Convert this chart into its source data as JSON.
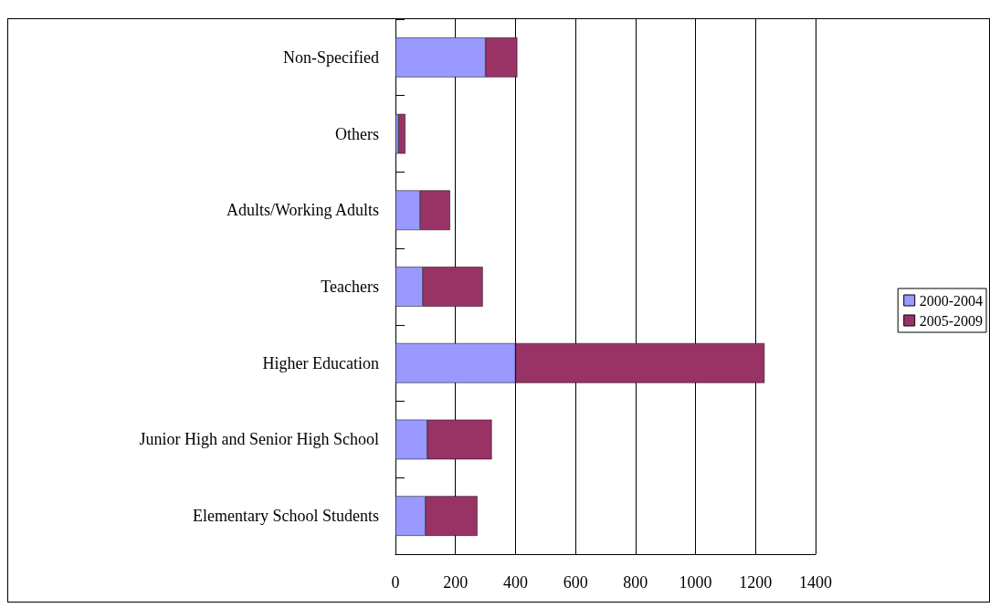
{
  "chart_data": {
    "type": "bar",
    "orientation": "horizontal",
    "stacked": true,
    "categories": [
      "Non-Specified",
      "Others",
      "Adults/Working Adults",
      "Teachers",
      "Higher Education",
      "Junior High and Senior High School",
      "Elementary School Students"
    ],
    "series": [
      {
        "name": "2000-2004",
        "color": "#9999ff",
        "values": [
          300,
          10,
          82,
          91,
          400,
          106,
          100
        ]
      },
      {
        "name": "2005-2009",
        "color": "#993366",
        "values": [
          106,
          23,
          100,
          200,
          830,
          215,
          173
        ]
      }
    ],
    "xlim": [
      0,
      1400
    ],
    "xticks": [
      0,
      200,
      400,
      600,
      800,
      1000,
      1200,
      1400
    ],
    "grid": "x",
    "legend": "right"
  }
}
